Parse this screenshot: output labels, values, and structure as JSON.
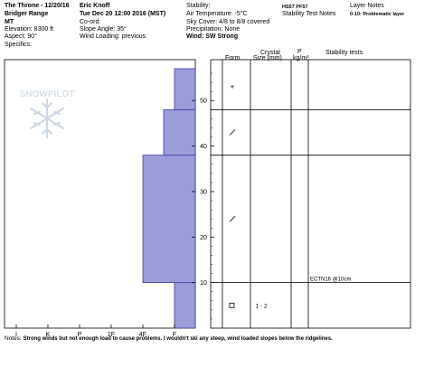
{
  "header": {
    "col1": {
      "title": "The Throne - 12/20/16",
      "range": "Bridger Range",
      "state": "MT",
      "elevation": "Elevation: 8300 ft",
      "aspect": "Aspect: 90°",
      "specifics": "Specifics:"
    },
    "col2": {
      "observer": "Eric Knoff",
      "datetime": "Tue Dec 20 12:00 2016 (MST)",
      "coord": "Co-ord:",
      "slope": "Slope Angle: 35°",
      "wind_loading": "Wind Loading: previous"
    },
    "col3": {
      "stability": "Stability:",
      "air_temp": "Air Temperature: -5°C",
      "sky": "Sky Cover: 4/8 to 8/8 covered",
      "precip": "Precipitation: None",
      "wind": "Wind:  SW Strong"
    },
    "col4": {
      "hs": "HS57  PF57",
      "stability_notes": "Stability Test Notes"
    },
    "col5": {
      "layer_notes": "Layer Notes",
      "scale_note": "0-10: Problematic layer"
    }
  },
  "columns": {
    "form": "Form",
    "crystal": "Crystal",
    "size": "Size (mm)",
    "rho": "P",
    "rho_unit": "kg/m³",
    "stability_tests": "Stability tests"
  },
  "watermark": "SNOWPILOT",
  "notes_label": "Notes:",
  "notes_text": "Strong winds but not enough load to cause problems. I wouldn't ski any steep, wind loaded slopes below the ridgelines.",
  "chart_data": {
    "type": "bar",
    "orientation": "horizontal",
    "description_of_axes": "x = hand hardness (F, 4F, 1F, P, K, I), y = snow height (cm)",
    "x_ticks": [
      "I",
      "K",
      "P",
      "1F",
      "4F",
      "F"
    ],
    "ylim": [
      0,
      57
    ],
    "y_ticks": [
      10,
      20,
      30,
      40,
      50
    ],
    "layers": [
      {
        "bottom": 0,
        "top": 10,
        "hardness": "F"
      },
      {
        "bottom": 10,
        "top": 38,
        "hardness": "4F-"
      },
      {
        "bottom": 38,
        "top": 48,
        "hardness": "F+"
      },
      {
        "bottom": 48,
        "top": 57,
        "hardness": "F"
      }
    ],
    "layer_boundaries": [
      10,
      38,
      48
    ],
    "grain_symbols": [
      {
        "height": 53,
        "symbol": "+"
      },
      {
        "height": 43,
        "symbol": "/"
      },
      {
        "height": 24,
        "symbol": "/"
      },
      {
        "height": 5,
        "symbol": "□",
        "size": "1 - 2"
      }
    ],
    "stability_tests": [
      {
        "height": 10,
        "label": "ECTN16 @10cm"
      }
    ],
    "colors": {
      "bar_fill": "#9c9cd9",
      "bar_stroke": "#3c3ca0"
    }
  }
}
